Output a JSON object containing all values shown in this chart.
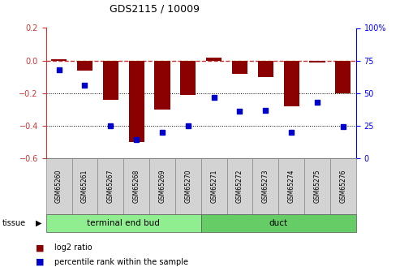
{
  "title": "GDS2115 / 10009",
  "samples": [
    "GSM65260",
    "GSM65261",
    "GSM65267",
    "GSM65268",
    "GSM65269",
    "GSM65270",
    "GSM65271",
    "GSM65272",
    "GSM65273",
    "GSM65274",
    "GSM65275",
    "GSM65276"
  ],
  "log2_ratio": [
    0.01,
    -0.06,
    -0.24,
    -0.5,
    -0.3,
    -0.21,
    0.02,
    -0.08,
    -0.1,
    -0.28,
    -0.01,
    -0.2
  ],
  "percentile": [
    68,
    56,
    25,
    14,
    20,
    25,
    47,
    36,
    37,
    20,
    43,
    24
  ],
  "groups": [
    {
      "label": "terminal end bud",
      "start": 0,
      "end": 6,
      "color": "#90ee90"
    },
    {
      "label": "duct",
      "start": 6,
      "end": 12,
      "color": "#66cc66"
    }
  ],
  "ylim_left": [
    -0.6,
    0.2
  ],
  "ylim_right": [
    0,
    100
  ],
  "yticks_left": [
    -0.6,
    -0.4,
    -0.2,
    0.0,
    0.2
  ],
  "yticks_right": [
    0,
    25,
    50,
    75,
    100
  ],
  "bar_color": "#8B0000",
  "dot_color": "#0000CD",
  "hline_color": "#cc3333",
  "grid_color": "#000000",
  "bg_color": "#ffffff",
  "legend_log2_label": "log2 ratio",
  "legend_pct_label": "percentile rank within the sample",
  "tissue_label": "tissue"
}
